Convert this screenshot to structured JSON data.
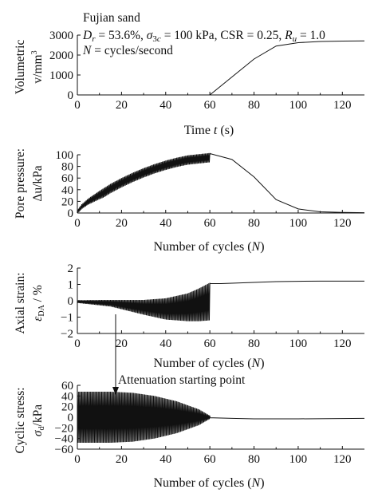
{
  "figure": {
    "annotation_lines": [
      "Fujian sand",
      "D_r = 53.6%, σ_3c = 100 kPa, CSR = 0.25, R_u = 1.0",
      "N = cycles/second"
    ],
    "arrow_label": "Attenuation starting point"
  },
  "chart_data": [
    {
      "id": "volumetric",
      "type": "line",
      "title": "",
      "ylabel_lines": [
        "Volumetric",
        "v/mm³"
      ],
      "xlabel": "Time t (s)",
      "xlim": [
        0,
        130
      ],
      "ylim": [
        0,
        3000
      ],
      "xticks": [
        0,
        20,
        40,
        60,
        80,
        100,
        120
      ],
      "yticks": [
        0,
        1000,
        2000,
        3000
      ],
      "x": [
        0,
        59,
        60,
        70,
        80,
        90,
        100,
        110,
        120,
        130
      ],
      "y": [
        0,
        0,
        0,
        900,
        1800,
        2450,
        2620,
        2680,
        2700,
        2710
      ]
    },
    {
      "id": "pore-pressure",
      "type": "line",
      "title": "",
      "ylabel_lines": [
        "Pore pressure:",
        "Δu/kPa"
      ],
      "xlabel": "Number of cycles (N)",
      "xlim": [
        0,
        130
      ],
      "ylim": [
        0,
        100
      ],
      "xticks": [
        0,
        20,
        40,
        60,
        80,
        100,
        120
      ],
      "yticks": [
        0,
        20,
        40,
        60,
        80,
        100
      ],
      "oscillation": {
        "cycles": 120,
        "x_end": 60,
        "amplitude": 8
      },
      "envelope_x": [
        0,
        2,
        5,
        10,
        15,
        20,
        25,
        30,
        35,
        40,
        45,
        50,
        55,
        60
      ],
      "envelope_y": [
        5,
        15,
        25,
        38,
        50,
        60,
        69,
        77,
        84,
        90,
        95,
        99,
        101,
        103
      ],
      "tail_x": [
        60,
        70,
        80,
        90,
        100,
        110,
        120,
        130
      ],
      "tail_y": [
        102,
        92,
        62,
        23,
        7,
        2,
        1,
        0.5
      ]
    },
    {
      "id": "axial-strain",
      "type": "line",
      "title": "",
      "ylabel_lines": [
        "Axial strain:",
        "ε_DA / %"
      ],
      "xlabel": "Number of cycles (N)",
      "xlim": [
        0,
        130
      ],
      "ylim": [
        -2,
        2
      ],
      "xticks": [
        0,
        20,
        40,
        60,
        80,
        100,
        120
      ],
      "yticks": [
        -2,
        -1,
        0,
        1,
        2
      ],
      "oscillation": {
        "cycles": 120,
        "x_end": 60
      },
      "amplitude_x": [
        0,
        15,
        30,
        40,
        50,
        55,
        60
      ],
      "amplitude_y": [
        0.08,
        0.2,
        0.45,
        0.65,
        0.85,
        1.0,
        1.15
      ],
      "offset_x": [
        0,
        15,
        30,
        40,
        50,
        55,
        60
      ],
      "offset_y": [
        -0.05,
        -0.15,
        -0.4,
        -0.5,
        -0.4,
        -0.25,
        -0.05
      ],
      "tail_x": [
        60,
        65,
        80,
        90,
        100,
        110,
        120,
        130
      ],
      "tail_y": [
        1.05,
        1.05,
        1.12,
        1.17,
        1.19,
        1.2,
        1.2,
        1.2
      ]
    },
    {
      "id": "cyclic-stress",
      "type": "line",
      "title": "",
      "ylabel_lines": [
        "Cyclic stress:",
        "σ_d/kPa"
      ],
      "xlabel": "Number of cycles (N)",
      "xlim": [
        0,
        130
      ],
      "ylim": [
        -60,
        60
      ],
      "xticks": [
        0,
        20,
        40,
        60,
        80,
        100,
        120
      ],
      "yticks": [
        -60,
        -40,
        -20,
        0,
        20,
        40,
        60
      ],
      "oscillation": {
        "cycles": 120,
        "x_end": 60
      },
      "amplitude_x": [
        0,
        15,
        25,
        35,
        45,
        55,
        60
      ],
      "amplitude_y": [
        48,
        48,
        46,
        40,
        30,
        15,
        3
      ],
      "tail_x": [
        60,
        70,
        80,
        100,
        130
      ],
      "tail_y": [
        -1,
        -2,
        -3,
        -3,
        -2
      ]
    }
  ]
}
